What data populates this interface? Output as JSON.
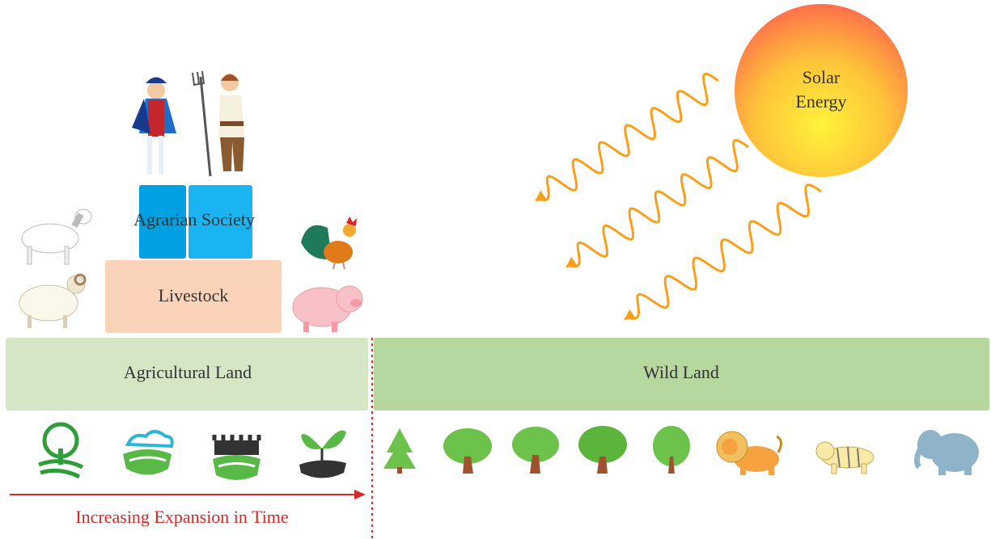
{
  "sun": {
    "label": [
      "Solar",
      "Energy"
    ]
  },
  "society": {
    "label": "Agrarian Society"
  },
  "livestock": {
    "label": "Livestock"
  },
  "agricultural_land": {
    "label": "Agricultural Land"
  },
  "wild_land": {
    "label": "Wild Land"
  },
  "timeline": {
    "label": "Increasing Expansion in Time"
  }
}
